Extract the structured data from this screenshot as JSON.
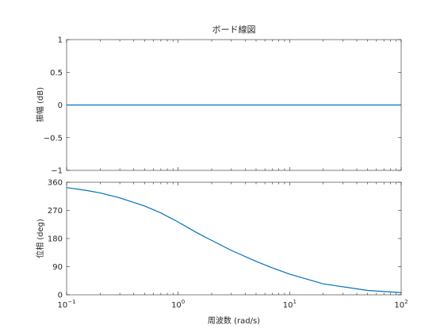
{
  "chart_data": {
    "type": "line",
    "title": "ボード線図",
    "xlabel": "周波数 (rad/s)",
    "xscale": "log",
    "xlim": [
      0.1,
      100
    ],
    "xticks": [
      0.1,
      1,
      10,
      100
    ],
    "xtick_labels": [
      {
        "base": "10",
        "exp": "−1"
      },
      {
        "base": "10",
        "exp": "0"
      },
      {
        "base": "10",
        "exp": "1"
      },
      {
        "base": "10",
        "exp": "2"
      }
    ],
    "line_color": "#0072bd",
    "grid": false,
    "subplots": [
      {
        "ylabel": "振幅 (dB)",
        "ylim": [
          -1,
          1
        ],
        "yticks": [
          -1,
          -0.5,
          0,
          0.5,
          1
        ],
        "ytick_labels": [
          "−1",
          "−0.5",
          "0",
          "0.5",
          "1"
        ],
        "series": [
          {
            "x": [
              0.1,
              0.2,
              0.5,
              1,
              2,
              5,
              10,
              20,
              50,
              100
            ],
            "y": [
              0,
              0,
              0,
              0,
              0,
              0,
              0,
              0,
              0,
              0
            ]
          }
        ]
      },
      {
        "ylabel": "位相 (deg)",
        "ylim": [
          0,
          360
        ],
        "yticks": [
          0,
          90,
          180,
          270,
          360
        ],
        "ytick_labels": [
          "0",
          "90",
          "180",
          "270",
          "360"
        ],
        "series": [
          {
            "x": [
              0.1,
              0.15,
              0.2,
              0.3,
              0.5,
              0.7,
              1,
              1.5,
              2,
              3,
              5,
              7,
              10,
              20,
              50,
              100
            ],
            "y": [
              343,
              334,
              326,
              310,
              284,
              262,
              233,
              197,
              174,
              142,
              107,
              86,
              66,
              35,
              14,
              7
            ]
          }
        ]
      }
    ]
  }
}
